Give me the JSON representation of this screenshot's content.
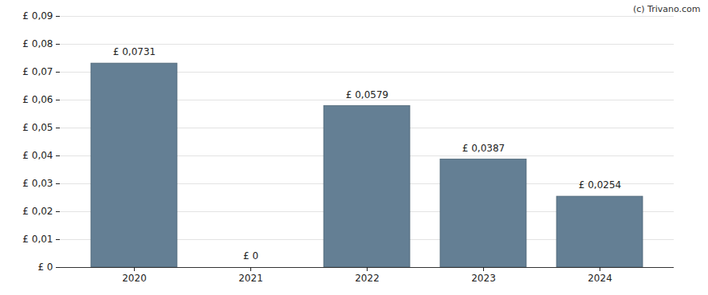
{
  "chart_data": {
    "type": "bar",
    "annotations": [
      "(c) Trivano.com"
    ],
    "categories": [
      "2020",
      "2021",
      "2022",
      "2023",
      "2024"
    ],
    "values": [
      0.0731,
      0,
      0.0579,
      0.0387,
      0.0254
    ],
    "value_labels": [
      "£ 0,0731",
      "£ 0",
      "£ 0,0579",
      "£ 0,0387",
      "£ 0,0254"
    ],
    "data_labels": true,
    "color": "#647f94",
    "ylim": [
      0,
      0.09
    ],
    "yticks": [
      {
        "value": 0,
        "label": "£ 0"
      },
      {
        "value": 0.01,
        "label": "£ 0,01"
      },
      {
        "value": 0.02,
        "label": "£ 0,02"
      },
      {
        "value": 0.03,
        "label": "£ 0,03"
      },
      {
        "value": 0.04,
        "label": "£ 0,04"
      },
      {
        "value": 0.05,
        "label": "£ 0,05"
      },
      {
        "value": 0.06,
        "label": "£ 0,06"
      },
      {
        "value": 0.07,
        "label": "£ 0,07"
      },
      {
        "value": 0.08,
        "label": "£ 0,08"
      },
      {
        "value": 0.09,
        "label": "£ 0,09"
      }
    ],
    "grid": true
  }
}
